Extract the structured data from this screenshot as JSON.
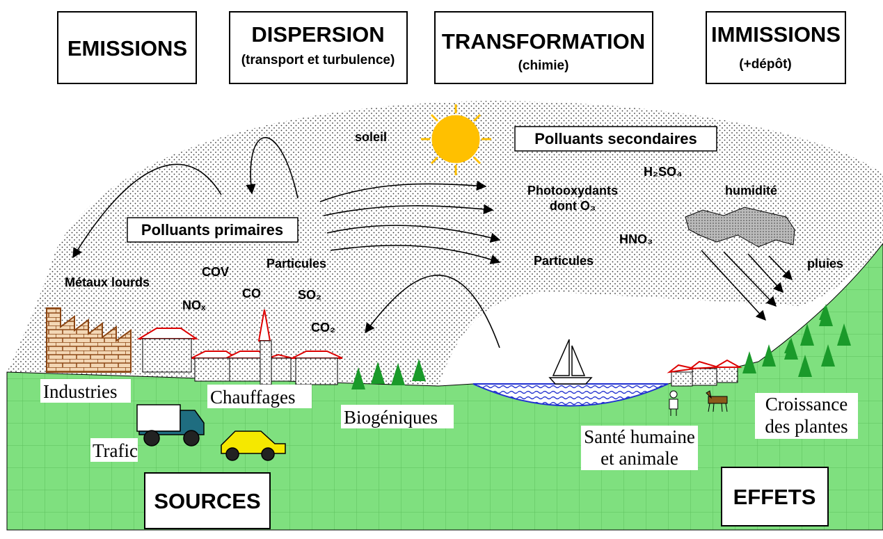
{
  "header": {
    "boxes": [
      {
        "title": "EMISSIONS"
      },
      {
        "title": "DISPERSION",
        "subtitle": "(transport et turbulence)"
      },
      {
        "title": "TRANSFORMATION",
        "subtitle": "(chimie)"
      },
      {
        "title": "IMMISSIONS",
        "subtitle": "(+dépôt)"
      }
    ]
  },
  "atmosphere": {
    "sun": "soleil",
    "secondary": {
      "title": "Polluants secondaires",
      "items": [
        "H₂SO₄",
        "Photooxydants",
        "dont O₃",
        "HNO₃",
        "Particules"
      ]
    },
    "humidity": "humidité",
    "rain": "pluies",
    "primary": {
      "title": "Polluants primaires",
      "items": [
        "Métaux lourds",
        "COV",
        "NOₓ",
        "CO",
        "Particules",
        "SO₂",
        "CO₂"
      ]
    }
  },
  "sources": {
    "labels": [
      "Industries",
      "Chauffages",
      "Biogéniques",
      "Trafic"
    ],
    "title": "SOURCES"
  },
  "effects": {
    "labels": [
      "Santé humaine",
      "et animale",
      "Croissance",
      "des plantes"
    ],
    "title": "EFFETS"
  }
}
